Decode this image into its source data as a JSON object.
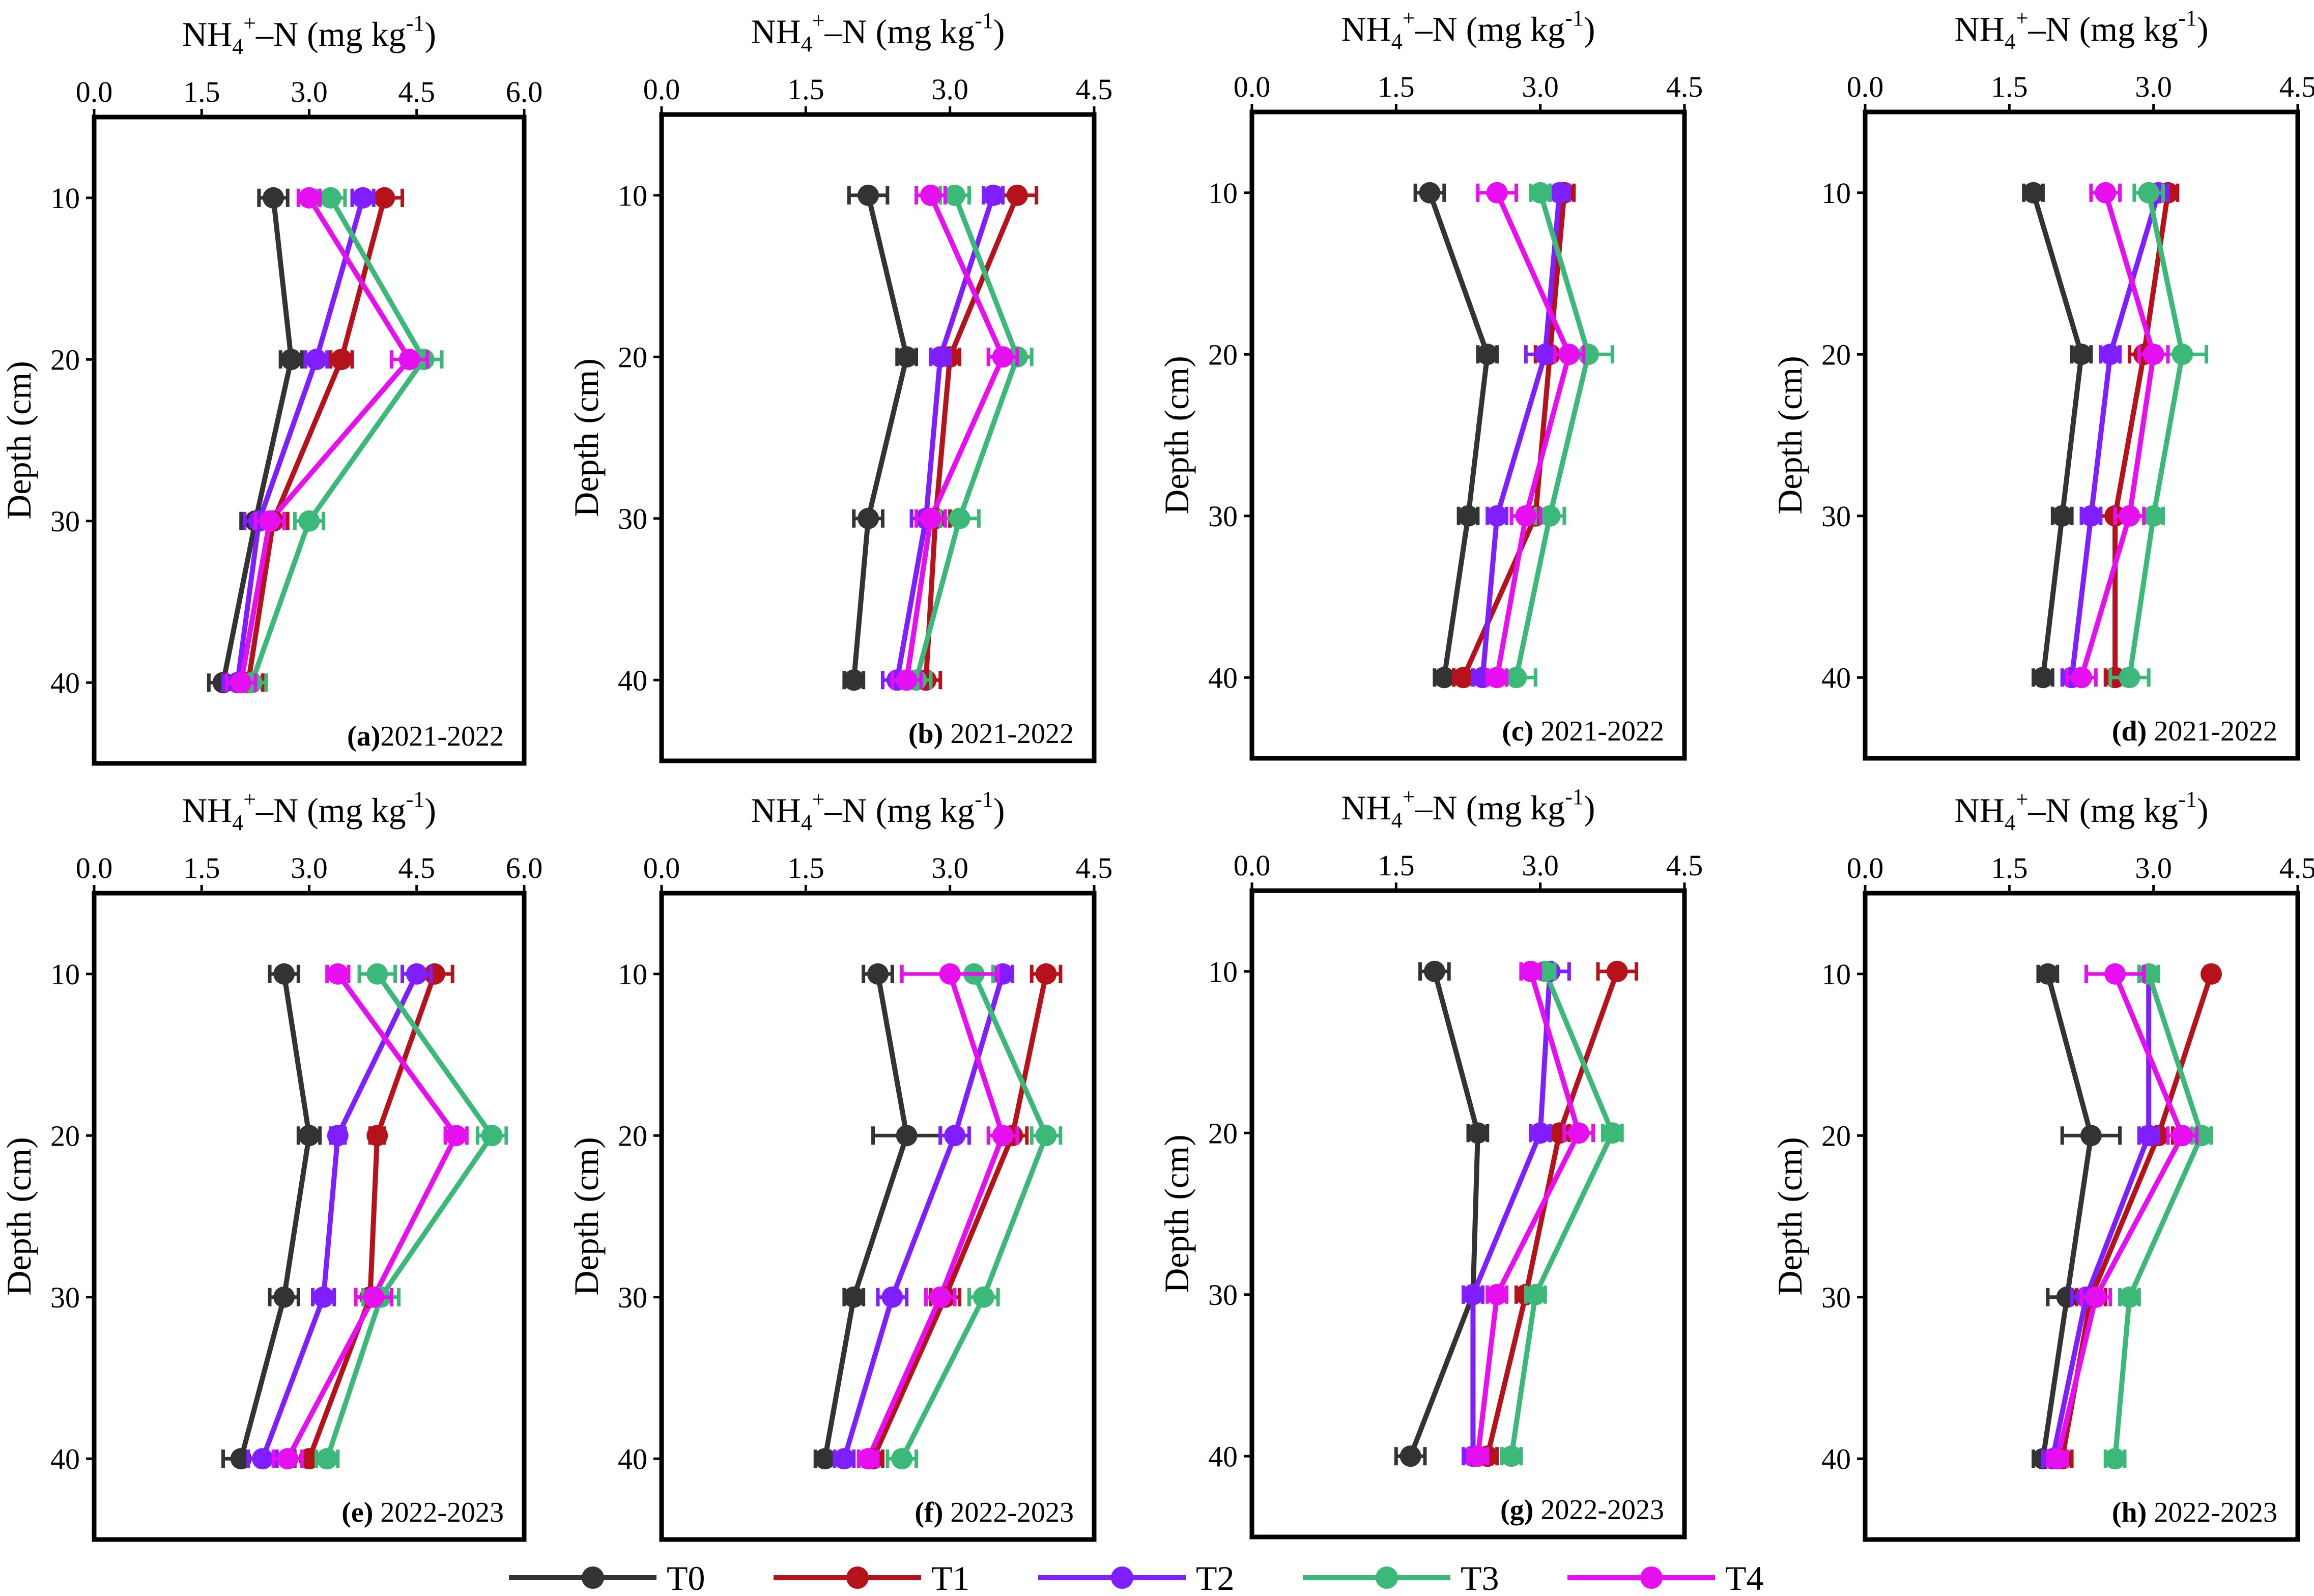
{
  "figure": {
    "x_axis_label_main": "NH",
    "x_axis_label_sub": "4",
    "x_axis_label_sup": "+",
    "x_axis_label_tail": "–N  (mg kg",
    "x_axis_label_unit_sup": "-1",
    "x_axis_label_close": ")",
    "y_axis_label": "Depth (cm)",
    "colors": {
      "T0": "#333333",
      "T1": "#b5121b",
      "T2": "#7f1fff",
      "T3": "#3cb878",
      "T4": "#e60ff0"
    }
  },
  "legend": {
    "entries": [
      {
        "label": "T0",
        "color": "#333333"
      },
      {
        "label": "T1",
        "color": "#b5121b"
      },
      {
        "label": "T2",
        "color": "#7f1fff"
      },
      {
        "label": "T3",
        "color": "#3cb878"
      },
      {
        "label": "T4",
        "color": "#e60ff0"
      }
    ]
  },
  "chart_data": [
    {
      "type": "line",
      "panel": "a",
      "panel_label_bold": "(a)",
      "panel_label_text": "2021-2022",
      "xlim": [
        0,
        6
      ],
      "xticks": [
        "0.0",
        "1.5",
        "3.0",
        "4.5",
        "6.0"
      ],
      "ylim": [
        45,
        5
      ],
      "yticks": [
        "10",
        "20",
        "30",
        "40"
      ],
      "depths": [
        10,
        20,
        30,
        40
      ],
      "series": [
        {
          "name": "T0",
          "values": [
            2.5,
            2.75,
            2.25,
            1.8
          ],
          "errors": [
            0.2,
            0.15,
            0.2,
            0.2
          ]
        },
        {
          "name": "T1",
          "values": [
            4.05,
            3.45,
            2.5,
            2.15
          ],
          "errors": [
            0.25,
            0.15,
            0.2,
            0.2
          ]
        },
        {
          "name": "T2",
          "values": [
            3.75,
            3.1,
            2.3,
            2.0
          ],
          "errors": [
            0.15,
            0.15,
            0.2,
            0.2
          ]
        },
        {
          "name": "T3",
          "values": [
            3.3,
            4.6,
            3.0,
            2.2
          ],
          "errors": [
            0.2,
            0.25,
            0.2,
            0.2
          ]
        },
        {
          "name": "T4",
          "values": [
            3.0,
            4.4,
            2.45,
            2.05
          ],
          "errors": [
            0.15,
            0.25,
            0.2,
            0.2
          ]
        }
      ]
    },
    {
      "type": "line",
      "panel": "b",
      "panel_label_bold": "(b)",
      "panel_label_text": " 2021-2022",
      "xlim": [
        0,
        4.5
      ],
      "xticks": [
        "0.0",
        "1.5",
        "3.0",
        "4.5"
      ],
      "ylim": [
        45,
        5
      ],
      "yticks": [
        "10",
        "20",
        "30",
        "40"
      ],
      "depths": [
        10,
        20,
        30,
        40
      ],
      "series": [
        {
          "name": "T0",
          "values": [
            2.15,
            2.55,
            2.15,
            2.0
          ],
          "errors": [
            0.2,
            0.1,
            0.15,
            0.1
          ]
        },
        {
          "name": "T1",
          "values": [
            3.7,
            3.0,
            2.85,
            2.75
          ],
          "errors": [
            0.2,
            0.1,
            0.15,
            0.15
          ]
        },
        {
          "name": "T2",
          "values": [
            3.45,
            2.9,
            2.75,
            2.45
          ],
          "errors": [
            0.1,
            0.1,
            0.15,
            0.15
          ]
        },
        {
          "name": "T3",
          "values": [
            3.05,
            3.7,
            3.1,
            2.65
          ],
          "errors": [
            0.15,
            0.15,
            0.2,
            0.15
          ]
        },
        {
          "name": "T4",
          "values": [
            2.8,
            3.55,
            2.8,
            2.55
          ],
          "errors": [
            0.15,
            0.15,
            0.15,
            0.15
          ]
        }
      ]
    },
    {
      "type": "line",
      "panel": "c",
      "panel_label_bold": "(c)",
      "panel_label_text": " 2021-2022",
      "xlim": [
        0,
        4.5
      ],
      "xticks": [
        "0.0",
        "1.5",
        "3.0",
        "4.5"
      ],
      "ylim": [
        45,
        5
      ],
      "yticks": [
        "10",
        "20",
        "30",
        "40"
      ],
      "depths": [
        10,
        20,
        30,
        40
      ],
      "series": [
        {
          "name": "T0",
          "values": [
            1.85,
            2.45,
            2.25,
            2.0
          ],
          "errors": [
            0.15,
            0.1,
            0.1,
            0.1
          ]
        },
        {
          "name": "T1",
          "values": [
            3.25,
            3.1,
            2.95,
            2.2
          ],
          "errors": [
            0.1,
            0.15,
            0.15,
            0.1
          ]
        },
        {
          "name": "T2",
          "values": [
            3.2,
            3.05,
            2.55,
            2.4
          ],
          "errors": [
            0.1,
            0.2,
            0.1,
            0.1
          ]
        },
        {
          "name": "T3",
          "values": [
            3.0,
            3.5,
            3.1,
            2.75
          ],
          "errors": [
            0.1,
            0.25,
            0.15,
            0.2
          ]
        },
        {
          "name": "T4",
          "values": [
            2.55,
            3.3,
            2.85,
            2.55
          ],
          "errors": [
            0.2,
            0.15,
            0.15,
            0.1
          ]
        }
      ]
    },
    {
      "type": "line",
      "panel": "d",
      "panel_label_bold": "(d)",
      "panel_label_text": " 2021-2022",
      "xlim": [
        0,
        4.5
      ],
      "xticks": [
        "0.0",
        "1.5",
        "3.0",
        "4.5"
      ],
      "ylim": [
        45,
        5
      ],
      "yticks": [
        "10",
        "20",
        "30",
        "40"
      ],
      "depths": [
        10,
        20,
        30,
        40
      ],
      "series": [
        {
          "name": "T0",
          "values": [
            1.75,
            2.25,
            2.05,
            1.85
          ],
          "errors": [
            0.1,
            0.1,
            0.1,
            0.1
          ]
        },
        {
          "name": "T1",
          "values": [
            3.15,
            2.9,
            2.6,
            2.6
          ],
          "errors": [
            0.1,
            0.15,
            0.15,
            0.1
          ]
        },
        {
          "name": "T2",
          "values": [
            3.05,
            2.55,
            2.35,
            2.15
          ],
          "errors": [
            0.1,
            0.1,
            0.1,
            0.1
          ]
        },
        {
          "name": "T3",
          "values": [
            2.95,
            3.3,
            3.0,
            2.75
          ],
          "errors": [
            0.15,
            0.25,
            0.1,
            0.2
          ]
        },
        {
          "name": "T4",
          "values": [
            2.5,
            3.0,
            2.75,
            2.25
          ],
          "errors": [
            0.15,
            0.15,
            0.15,
            0.15
          ]
        }
      ]
    },
    {
      "type": "line",
      "panel": "e",
      "panel_label_bold": "(e)",
      "panel_label_text": " 2022-2023",
      "xlim": [
        0,
        6
      ],
      "xticks": [
        "0.0",
        "1.5",
        "3.0",
        "4.5",
        "6.0"
      ],
      "ylim": [
        45,
        5
      ],
      "yticks": [
        "10",
        "20",
        "30",
        "40"
      ],
      "depths": [
        10,
        20,
        30,
        40
      ],
      "series": [
        {
          "name": "T0",
          "values": [
            2.65,
            3.0,
            2.65,
            2.05
          ],
          "errors": [
            0.2,
            0.15,
            0.2,
            0.25
          ]
        },
        {
          "name": "T1",
          "values": [
            4.75,
            3.95,
            3.85,
            3.0
          ],
          "errors": [
            0.25,
            0.1,
            0.2,
            0.2
          ]
        },
        {
          "name": "T2",
          "values": [
            4.5,
            3.4,
            3.2,
            2.35
          ],
          "errors": [
            0.2,
            0.1,
            0.15,
            0.2
          ]
        },
        {
          "name": "T3",
          "values": [
            3.95,
            5.55,
            4.0,
            3.25
          ],
          "errors": [
            0.25,
            0.2,
            0.25,
            0.15
          ]
        },
        {
          "name": "T4",
          "values": [
            3.4,
            5.05,
            3.9,
            2.7
          ],
          "errors": [
            0.15,
            0.15,
            0.25,
            0.2
          ]
        }
      ]
    },
    {
      "type": "line",
      "panel": "f",
      "panel_label_bold": "(f)",
      "panel_label_text": " 2022-2023",
      "xlim": [
        0,
        4.5
      ],
      "xticks": [
        "0.0",
        "1.5",
        "3.0",
        "4.5"
      ],
      "ylim": [
        45,
        5
      ],
      "yticks": [
        "10",
        "20",
        "30",
        "40"
      ],
      "depths": [
        10,
        20,
        30,
        40
      ],
      "series": [
        {
          "name": "T0",
          "values": [
            2.25,
            2.55,
            2.0,
            1.7
          ],
          "errors": [
            0.15,
            0.35,
            0.1,
            0.1
          ]
        },
        {
          "name": "T1",
          "values": [
            4.0,
            3.65,
            2.95,
            2.2
          ],
          "errors": [
            0.15,
            0.15,
            0.15,
            0.1
          ]
        },
        {
          "name": "T2",
          "values": [
            3.55,
            3.05,
            2.4,
            1.9
          ],
          "errors": [
            0.1,
            0.15,
            0.15,
            0.1
          ]
        },
        {
          "name": "T3",
          "values": [
            3.25,
            4.0,
            3.35,
            2.5
          ],
          "errors": [
            0.2,
            0.15,
            0.15,
            0.15
          ]
        },
        {
          "name": "T4",
          "values": [
            3.0,
            3.55,
            2.9,
            2.15
          ],
          "errors": [
            0.5,
            0.15,
            0.15,
            0.1
          ]
        }
      ]
    },
    {
      "type": "line",
      "panel": "g",
      "panel_label_bold": "(g)",
      "panel_label_text": " 2022-2023",
      "xlim": [
        0,
        4.5
      ],
      "xticks": [
        "0.0",
        "1.5",
        "3.0",
        "4.5"
      ],
      "ylim": [
        45,
        5
      ],
      "yticks": [
        "10",
        "20",
        "30",
        "40"
      ],
      "depths": [
        10,
        20,
        30,
        40
      ],
      "series": [
        {
          "name": "T0",
          "values": [
            1.9,
            2.35,
            2.3,
            1.65
          ],
          "errors": [
            0.15,
            0.1,
            0.1,
            0.15
          ]
        },
        {
          "name": "T1",
          "values": [
            3.8,
            3.2,
            2.85,
            2.45
          ],
          "errors": [
            0.2,
            0.1,
            0.1,
            0.1
          ]
        },
        {
          "name": "T2",
          "values": [
            3.1,
            3.0,
            2.3,
            2.3
          ],
          "errors": [
            0.2,
            0.1,
            0.1,
            0.1
          ]
        },
        {
          "name": "T3",
          "values": [
            3.05,
            3.75,
            2.95,
            2.7
          ],
          "errors": [
            0.1,
            0.1,
            0.1,
            0.1
          ]
        },
        {
          "name": "T4",
          "values": [
            2.9,
            3.4,
            2.55,
            2.35
          ],
          "errors": [
            0.1,
            0.15,
            0.1,
            0.1
          ]
        }
      ]
    },
    {
      "type": "line",
      "panel": "h",
      "panel_label_bold": "(h)",
      "panel_label_text": " 2022-2023",
      "xlim": [
        0,
        4.5
      ],
      "xticks": [
        "0.0",
        "1.5",
        "3.0",
        "4.5"
      ],
      "ylim": [
        45,
        5
      ],
      "yticks": [
        "10",
        "20",
        "30",
        "40"
      ],
      "depths": [
        10,
        20,
        30,
        40
      ],
      "series": [
        {
          "name": "T0",
          "values": [
            1.9,
            2.35,
            2.1,
            1.85
          ],
          "errors": [
            0.1,
            0.3,
            0.2,
            0.1
          ]
        },
        {
          "name": "T1",
          "values": [
            3.6,
            3.05,
            2.35,
            2.05
          ],
          "errors": [
            0.05,
            0.15,
            0.15,
            0.1
          ]
        },
        {
          "name": "T2",
          "values": [
            2.95,
            2.95,
            2.3,
            1.95
          ],
          "errors": [
            0.1,
            0.1,
            0.15,
            0.1
          ]
        },
        {
          "name": "T3",
          "values": [
            2.95,
            3.5,
            2.75,
            2.6
          ],
          "errors": [
            0.1,
            0.1,
            0.1,
            0.1
          ]
        },
        {
          "name": "T4",
          "values": [
            2.6,
            3.3,
            2.4,
            2.0
          ],
          "errors": [
            0.3,
            0.15,
            0.15,
            0.1
          ]
        }
      ]
    }
  ]
}
